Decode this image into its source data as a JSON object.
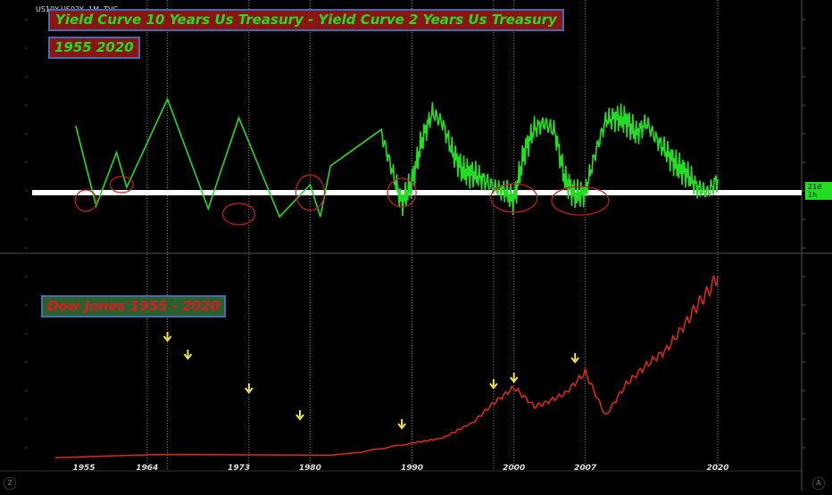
{
  "ticker": "US10Y-US02Y, 1M, TVC",
  "titles": {
    "yield_title": "Yield Curve 10 Years Us Treasury - Yield Curve 2 Years Us Treasury",
    "yield_years": "1955 2020",
    "dow_title": "Dow Jones 1955 - 2020"
  },
  "axis_badge": "21d 1h",
  "corner_left": "Z",
  "corner_right": "A",
  "colors": {
    "yield_line": "#22dd22",
    "dow_line": "#e02a1a",
    "baseline": "#ffffff",
    "ellipse": "#c81e1e",
    "arrow": "#f2e33a",
    "vline": "#888888"
  },
  "chart_data": [
    {
      "type": "line",
      "series": [
        {
          "values_x": [
            1957,
            1959,
            1961,
            1962,
            1966,
            1970,
            1973,
            1977,
            1980,
            1981,
            1982,
            1987,
            1988,
            1989,
            1990,
            1991,
            1992,
            1993,
            1994,
            1995,
            1996,
            1997,
            1998,
            1999,
            2000,
            2001,
            2002,
            2003,
            2004,
            2005,
            2006,
            2007,
            2008,
            2009,
            2010,
            2011,
            2012,
            2013,
            2014,
            2015,
            2016,
            2017,
            2018,
            2019,
            2020
          ],
          "values_y": [
            2.5,
            -0.5,
            1.5,
            0.2,
            3.5,
            -0.6,
            2.8,
            -0.9,
            0.3,
            -0.9,
            1.0,
            2.2,
            0.9,
            -0.4,
            0.4,
            2.0,
            3.0,
            2.6,
            1.5,
            0.8,
            0.7,
            0.5,
            0.2,
            0.1,
            -0.3,
            1.5,
            2.4,
            2.6,
            2.3,
            0.5,
            -0.1,
            0.0,
            1.5,
            2.7,
            2.8,
            2.7,
            2.2,
            2.6,
            2.0,
            1.5,
            1.0,
            0.7,
            0.2,
            0.0,
            0.5
          ]
        }
      ],
      "baseline": 0
    },
    {
      "type": "line",
      "x_tick_labels": [
        "1955",
        "1964",
        "1973",
        "1980",
        "1990",
        "2000",
        "2007",
        "2020"
      ],
      "series": [
        {
          "values_x": [
            1955,
            1965,
            1982,
            1985,
            1990,
            1993,
            1996,
            1998,
            2000,
            2002,
            2003,
            2005,
            2007,
            2009,
            2011,
            2013,
            2015,
            2017,
            2018,
            2019,
            2020
          ],
          "values_y": [
            400,
            900,
            800,
            1300,
            2700,
            3500,
            6000,
            9000,
            11500,
            8500,
            9000,
            10500,
            13900,
            7000,
            12000,
            15000,
            17500,
            22000,
            24500,
            26500,
            29000
          ]
        }
      ],
      "signal_years": [
        1966,
        1968,
        1974,
        1979,
        1989,
        1998,
        2000,
        2006
      ]
    }
  ]
}
